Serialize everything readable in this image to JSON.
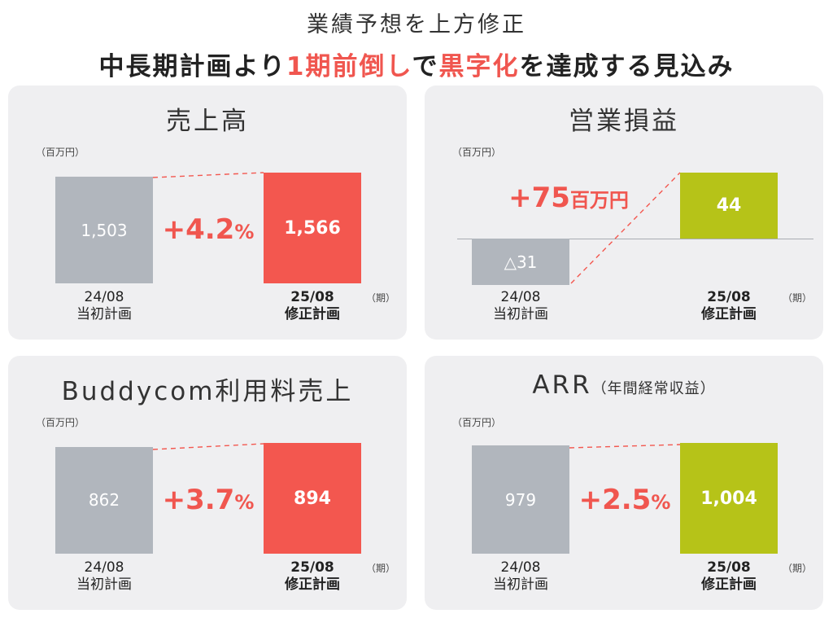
{
  "header": {
    "line1": "業績予想を上方修正",
    "line2_a": "中長期計画より",
    "line2_hl1": "1期前倒し",
    "line2_b": "で",
    "line2_hl2": "黒字化",
    "line2_c": "を達成する見込み"
  },
  "colors": {
    "grey": "#b1b6bd",
    "red": "#f3574f",
    "lime": "#b6c318",
    "accent_text": "#f0564f"
  },
  "chart_data": [
    {
      "type": "bar",
      "title": "売上高",
      "unit": "（百万円）",
      "period_label": "（期）",
      "categories": [
        [
          "24/08",
          "当初計画"
        ],
        [
          "25/08",
          "修正計画"
        ]
      ],
      "values": [
        1503,
        1566
      ],
      "value_labels": [
        "1,503",
        "1,566"
      ],
      "change_label": "+4.2",
      "change_unit": "%"
    },
    {
      "type": "bar",
      "title": "営業損益",
      "unit": "（百万円）",
      "period_label": "（期）",
      "categories": [
        [
          "24/08",
          "当初計画"
        ],
        [
          "25/08",
          "修正計画"
        ]
      ],
      "values": [
        -31,
        44
      ],
      "value_labels": [
        "△31",
        "44"
      ],
      "change_label": "+75",
      "change_unit": "百万円"
    },
    {
      "type": "bar",
      "title": "Buddycom利用料売上",
      "unit": "（百万円）",
      "period_label": "（期）",
      "categories": [
        [
          "24/08",
          "当初計画"
        ],
        [
          "25/08",
          "修正計画"
        ]
      ],
      "values": [
        862,
        894
      ],
      "value_labels": [
        "862",
        "894"
      ],
      "change_label": "+3.7",
      "change_unit": "%"
    },
    {
      "type": "bar",
      "title": "ARR",
      "title_sub": "（年間経常収益）",
      "unit": "（百万円）",
      "period_label": "（期）",
      "categories": [
        [
          "24/08",
          "当初計画"
        ],
        [
          "25/08",
          "修正計画"
        ]
      ],
      "values": [
        979,
        1004
      ],
      "value_labels": [
        "979",
        "1,004"
      ],
      "change_label": "+2.5",
      "change_unit": "%"
    }
  ]
}
